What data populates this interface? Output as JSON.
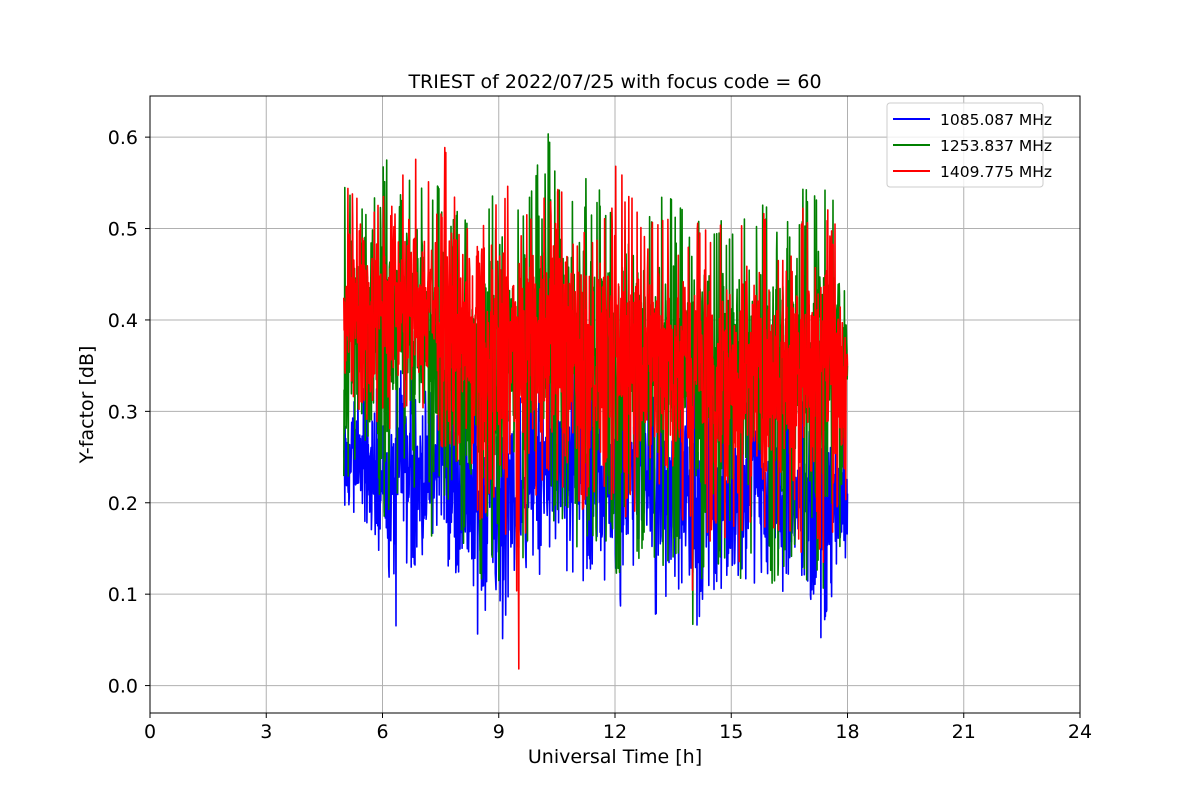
{
  "chart_data": {
    "type": "line",
    "title": "TRIEST of 2022/07/25 with focus code = 60",
    "xlabel": "Universal Time [h]",
    "ylabel": "Y-factor [dB]",
    "xlim": [
      0,
      24
    ],
    "ylim": [
      -0.03,
      0.645
    ],
    "xticks": [
      0,
      3,
      6,
      9,
      12,
      15,
      18,
      21,
      24
    ],
    "xtick_labels": [
      "0",
      "3",
      "6",
      "9",
      "12",
      "15",
      "18",
      "21",
      "24"
    ],
    "yticks": [
      0.0,
      0.1,
      0.2,
      0.3,
      0.4,
      0.5,
      0.6
    ],
    "ytick_labels": [
      "0.0",
      "0.1",
      "0.2",
      "0.3",
      "0.4",
      "0.5",
      "0.6"
    ],
    "grid": true,
    "legend_position": "upper right",
    "series": [
      {
        "name": "1085.087 MHz",
        "color": "#0000ff",
        "x": [
          5.0,
          5.25,
          5.5,
          5.75,
          6.0,
          6.25,
          6.5,
          6.75,
          7.0,
          7.25,
          7.5,
          7.75,
          8.0,
          8.25,
          8.5,
          8.75,
          9.0,
          9.25,
          9.5,
          9.75,
          10.0,
          10.25,
          10.5,
          10.75,
          11.0,
          11.25,
          11.5,
          11.75,
          12.0,
          12.25,
          12.5,
          12.75,
          13.0,
          13.25,
          13.5,
          13.75,
          14.0,
          14.25,
          14.5,
          14.75,
          15.0,
          15.25,
          15.5,
          15.75,
          16.0,
          16.25,
          16.5,
          16.75,
          17.0,
          17.25,
          17.5,
          17.75,
          18.0
        ],
        "y": [
          0.24,
          0.25,
          0.24,
          0.23,
          0.22,
          0.2,
          0.25,
          0.24,
          0.23,
          0.21,
          0.27,
          0.24,
          0.22,
          0.2,
          0.21,
          0.2,
          0.19,
          0.22,
          0.21,
          0.22,
          0.23,
          0.24,
          0.25,
          0.27,
          0.26,
          0.25,
          0.24,
          0.22,
          0.21,
          0.23,
          0.25,
          0.24,
          0.22,
          0.21,
          0.2,
          0.22,
          0.21,
          0.22,
          0.21,
          0.2,
          0.21,
          0.22,
          0.23,
          0.22,
          0.21,
          0.2,
          0.21,
          0.21,
          0.22,
          0.21,
          0.23,
          0.2,
          0.21
        ],
        "spread_low": [
          0.1,
          0.18,
          0.16,
          0.14,
          0.15,
          0.03,
          0.12,
          0.13,
          0.12,
          0.15,
          0.12,
          0.11,
          0.09,
          0.04,
          0.06,
          0.09,
          0.02,
          0.1,
          0.07,
          0.1,
          0.12,
          0.11,
          0.11,
          0.1,
          0.1,
          0.12,
          0.1,
          0.11,
          0.07,
          0.1,
          0.09,
          0.12,
          0.07,
          0.08,
          0.1,
          0.11,
          0.04,
          0.09,
          0.1,
          0.1,
          0.08,
          0.11,
          0.11,
          0.11,
          0.09,
          0.1,
          0.11,
          0.1,
          0.09,
          0.04,
          0.09,
          0.11,
          0.07
        ],
        "spread_high": [
          0.3,
          0.33,
          0.35,
          0.33,
          0.32,
          0.36,
          0.37,
          0.33,
          0.35,
          0.34,
          0.36,
          0.34,
          0.33,
          0.35,
          0.33,
          0.34,
          0.32,
          0.35,
          0.34,
          0.36,
          0.35,
          0.36,
          0.34,
          0.37,
          0.35,
          0.36,
          0.35,
          0.34,
          0.34,
          0.35,
          0.36,
          0.34,
          0.35,
          0.33,
          0.34,
          0.35,
          0.33,
          0.34,
          0.34,
          0.33,
          0.34,
          0.33,
          0.35,
          0.35,
          0.34,
          0.33,
          0.34,
          0.33,
          0.34,
          0.34,
          0.35,
          0.33,
          0.36
        ]
      },
      {
        "name": "1253.837 MHz",
        "color": "#008000",
        "x": [
          5.0,
          5.25,
          5.5,
          5.75,
          6.0,
          6.25,
          6.5,
          6.75,
          7.0,
          7.25,
          7.5,
          7.75,
          8.0,
          8.25,
          8.5,
          8.75,
          9.0,
          9.25,
          9.5,
          9.75,
          10.0,
          10.25,
          10.5,
          10.75,
          11.0,
          11.25,
          11.5,
          11.75,
          12.0,
          12.25,
          12.5,
          12.75,
          13.0,
          13.25,
          13.5,
          13.75,
          14.0,
          14.25,
          14.5,
          14.75,
          15.0,
          15.25,
          15.5,
          15.75,
          16.0,
          16.25,
          16.5,
          16.75,
          17.0,
          17.25,
          17.5,
          17.75,
          18.0
        ],
        "y": [
          0.37,
          0.4,
          0.39,
          0.38,
          0.41,
          0.42,
          0.41,
          0.4,
          0.4,
          0.38,
          0.37,
          0.36,
          0.35,
          0.36,
          0.35,
          0.36,
          0.35,
          0.37,
          0.36,
          0.37,
          0.38,
          0.37,
          0.38,
          0.37,
          0.36,
          0.37,
          0.37,
          0.36,
          0.36,
          0.37,
          0.36,
          0.36,
          0.35,
          0.36,
          0.35,
          0.35,
          0.34,
          0.35,
          0.35,
          0.35,
          0.34,
          0.35,
          0.36,
          0.35,
          0.35,
          0.35,
          0.36,
          0.35,
          0.36,
          0.37,
          0.36,
          0.36,
          0.35
        ],
        "spread_low": [
          0.22,
          0.24,
          0.23,
          0.2,
          0.18,
          0.2,
          0.22,
          0.2,
          0.21,
          0.16,
          0.2,
          0.18,
          0.15,
          0.13,
          0.1,
          0.14,
          0.1,
          0.14,
          0.12,
          0.16,
          0.17,
          0.18,
          0.17,
          0.17,
          0.13,
          0.16,
          0.15,
          0.15,
          0.11,
          0.14,
          0.13,
          0.15,
          0.12,
          0.13,
          0.14,
          0.14,
          0.04,
          0.12,
          0.13,
          0.12,
          0.05,
          0.12,
          0.14,
          0.13,
          0.11,
          0.12,
          0.13,
          0.1,
          0.12,
          0.1,
          0.1,
          0.14,
          0.1
        ],
        "spread_high": [
          0.56,
          0.57,
          0.55,
          0.54,
          0.59,
          0.58,
          0.58,
          0.55,
          0.57,
          0.56,
          0.54,
          0.53,
          0.52,
          0.5,
          0.53,
          0.55,
          0.57,
          0.55,
          0.54,
          0.56,
          0.58,
          0.61,
          0.55,
          0.54,
          0.55,
          0.56,
          0.55,
          0.53,
          0.58,
          0.55,
          0.54,
          0.53,
          0.55,
          0.54,
          0.53,
          0.52,
          0.52,
          0.53,
          0.52,
          0.51,
          0.52,
          0.53,
          0.51,
          0.53,
          0.52,
          0.5,
          0.57,
          0.55,
          0.54,
          0.58,
          0.56,
          0.55,
          0.48
        ]
      },
      {
        "name": "1409.775 MHz",
        "color": "#ff0000",
        "x": [
          5.0,
          5.25,
          5.5,
          5.75,
          6.0,
          6.25,
          6.5,
          6.75,
          7.0,
          7.25,
          7.5,
          7.75,
          8.0,
          8.25,
          8.5,
          8.75,
          9.0,
          9.25,
          9.5,
          9.75,
          10.0,
          10.25,
          10.5,
          10.75,
          11.0,
          11.25,
          11.5,
          11.75,
          12.0,
          12.25,
          12.5,
          12.75,
          13.0,
          13.25,
          13.5,
          13.75,
          14.0,
          14.25,
          14.5,
          14.75,
          15.0,
          15.25,
          15.5,
          15.75,
          16.0,
          16.25,
          16.5,
          16.75,
          17.0,
          17.25,
          17.5,
          17.75,
          18.0
        ],
        "y": [
          0.41,
          0.43,
          0.42,
          0.41,
          0.43,
          0.44,
          0.42,
          0.41,
          0.42,
          0.42,
          0.43,
          0.4,
          0.38,
          0.37,
          0.38,
          0.37,
          0.37,
          0.38,
          0.36,
          0.38,
          0.39,
          0.38,
          0.38,
          0.37,
          0.37,
          0.38,
          0.37,
          0.36,
          0.37,
          0.37,
          0.36,
          0.36,
          0.36,
          0.36,
          0.35,
          0.36,
          0.35,
          0.35,
          0.35,
          0.36,
          0.35,
          0.35,
          0.36,
          0.35,
          0.35,
          0.36,
          0.37,
          0.36,
          0.36,
          0.37,
          0.36,
          0.36,
          0.35
        ],
        "spread_low": [
          0.27,
          0.3,
          0.29,
          0.28,
          0.26,
          0.27,
          0.28,
          0.27,
          0.29,
          0.25,
          0.26,
          0.26,
          0.2,
          0.18,
          0.17,
          0.2,
          0.13,
          0.18,
          0.0,
          0.2,
          0.21,
          0.22,
          0.21,
          0.22,
          0.18,
          0.2,
          0.2,
          0.2,
          0.16,
          0.18,
          0.15,
          0.2,
          0.13,
          0.15,
          0.16,
          0.18,
          0.1,
          0.15,
          0.16,
          0.15,
          0.07,
          0.15,
          0.18,
          0.17,
          0.15,
          0.15,
          0.16,
          0.14,
          0.16,
          0.13,
          0.14,
          0.2,
          0.04
        ],
        "spread_high": [
          0.56,
          0.55,
          0.54,
          0.53,
          0.56,
          0.57,
          0.56,
          0.58,
          0.57,
          0.55,
          0.61,
          0.56,
          0.5,
          0.52,
          0.55,
          0.54,
          0.55,
          0.56,
          0.52,
          0.53,
          0.54,
          0.53,
          0.55,
          0.53,
          0.53,
          0.55,
          0.54,
          0.52,
          0.58,
          0.55,
          0.53,
          0.52,
          0.53,
          0.52,
          0.51,
          0.5,
          0.51,
          0.51,
          0.5,
          0.51,
          0.5,
          0.51,
          0.49,
          0.52,
          0.51,
          0.49,
          0.55,
          0.53,
          0.51,
          0.53,
          0.52,
          0.51,
          0.46
        ]
      }
    ]
  }
}
